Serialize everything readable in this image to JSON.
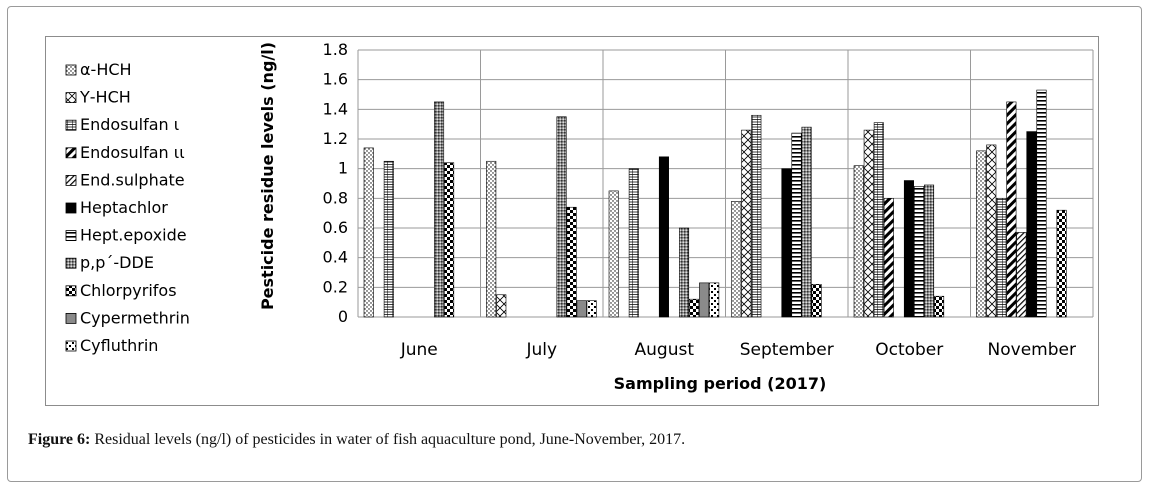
{
  "caption": {
    "label": "Figure 6:",
    "text": " Residual levels (ng/l) of pesticides in water of fish aquaculture pond, June-November, 2017."
  },
  "chart_data": {
    "type": "bar",
    "title": "",
    "xlabel": "Sampling period (2017)",
    "ylabel": "Pesticide residue levels (ng/l)",
    "ylim": [
      0,
      1.8
    ],
    "yticks": [
      "0",
      "0.2",
      "0.4",
      "0.6",
      "0.8",
      "1",
      "1.2",
      "1.4",
      "1.6",
      "1.8"
    ],
    "grid": "horizontal",
    "legend_position": "left",
    "categories": [
      "June",
      "July",
      "August",
      "September",
      "October",
      "November"
    ],
    "series": [
      {
        "name": "α-HCH",
        "values": [
          1.14,
          1.05,
          0.85,
          0.78,
          1.02,
          1.12
        ]
      },
      {
        "name": "Υ-HCH",
        "values": [
          0,
          0.15,
          0,
          1.26,
          1.26,
          1.16
        ]
      },
      {
        "name": "Endosulfan ι",
        "values": [
          1.05,
          0,
          1.0,
          1.36,
          1.31,
          0.8
        ]
      },
      {
        "name": "Endosulfan ιι",
        "values": [
          0,
          0,
          0,
          0,
          0.8,
          1.45
        ]
      },
      {
        "name": "End.sulphate",
        "values": [
          0,
          0,
          0,
          0,
          0,
          0.57
        ]
      },
      {
        "name": "Heptachlor",
        "values": [
          0,
          0,
          1.08,
          1.0,
          0.92,
          1.25
        ]
      },
      {
        "name": "Hept.epoxide",
        "values": [
          0,
          0,
          0,
          1.24,
          0.88,
          1.53
        ]
      },
      {
        "name": "p,p´-DDE",
        "values": [
          1.45,
          1.35,
          0.6,
          1.28,
          0.89,
          0
        ]
      },
      {
        "name": "Chlorpyrifos",
        "values": [
          1.04,
          0.74,
          0.12,
          0.22,
          0.14,
          0.72
        ]
      },
      {
        "name": "Cypermethrin",
        "values": [
          0,
          0.11,
          0.23,
          0,
          0,
          0
        ]
      },
      {
        "name": "Cyfluthrin",
        "values": [
          0,
          0.11,
          0.23,
          0,
          0,
          0
        ]
      }
    ]
  }
}
